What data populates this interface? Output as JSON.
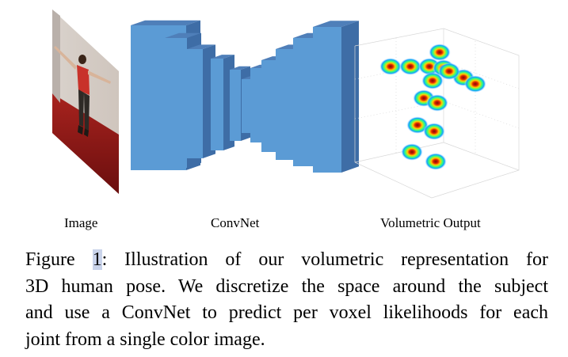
{
  "figure": {
    "labels": {
      "image": "Image",
      "convnet": "ConvNet",
      "output": "Volumetric Output"
    },
    "colors": {
      "conv_face": "#5b9bd5",
      "conv_top": "#4f7fb9",
      "conv_side": "#3e6da6",
      "heat_core": "#8b1a00",
      "heat_mid": "#ffd400",
      "heat_outer": "#00b4ff"
    }
  },
  "caption": {
    "prefix": "Figure ",
    "ref": "1",
    "line1_rest": ": Illustration of our volumetric representation for",
    "line2": "3D human pose. We discretize the space around the subject",
    "line3": "and use a ConvNet to predict per voxel likelihoods for each",
    "line4": "joint from a single color image."
  }
}
